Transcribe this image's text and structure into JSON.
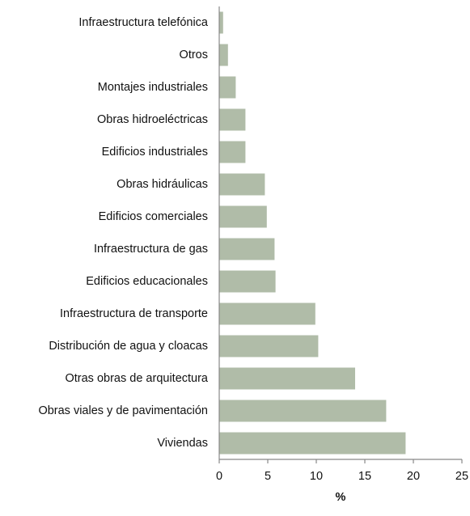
{
  "chart_data": {
    "type": "hbar",
    "categories": [
      "Infraestructura telefónica",
      "Otros",
      "Montajes industriales",
      "Obras hidroeléctricas",
      "Edificios industriales",
      "Obras hidráulicas",
      "Edificios comerciales",
      "Infraestructura de gas",
      "Edificios educacionales",
      "Infraestructura de transporte",
      "Distribución de agua y cloacas",
      "Otras obras de arquitectura",
      "Obras viales y de pavimentación",
      "Viviendas"
    ],
    "values": [
      0.4,
      0.9,
      1.7,
      2.7,
      2.7,
      4.7,
      4.9,
      5.7,
      5.8,
      9.9,
      10.2,
      14.0,
      17.2,
      19.2
    ],
    "color": "#b0bca8",
    "xlabel": "%",
    "xlim": [
      0,
      25
    ],
    "xticks": [
      0,
      5,
      10,
      15,
      20,
      25
    ],
    "grid": false
  }
}
